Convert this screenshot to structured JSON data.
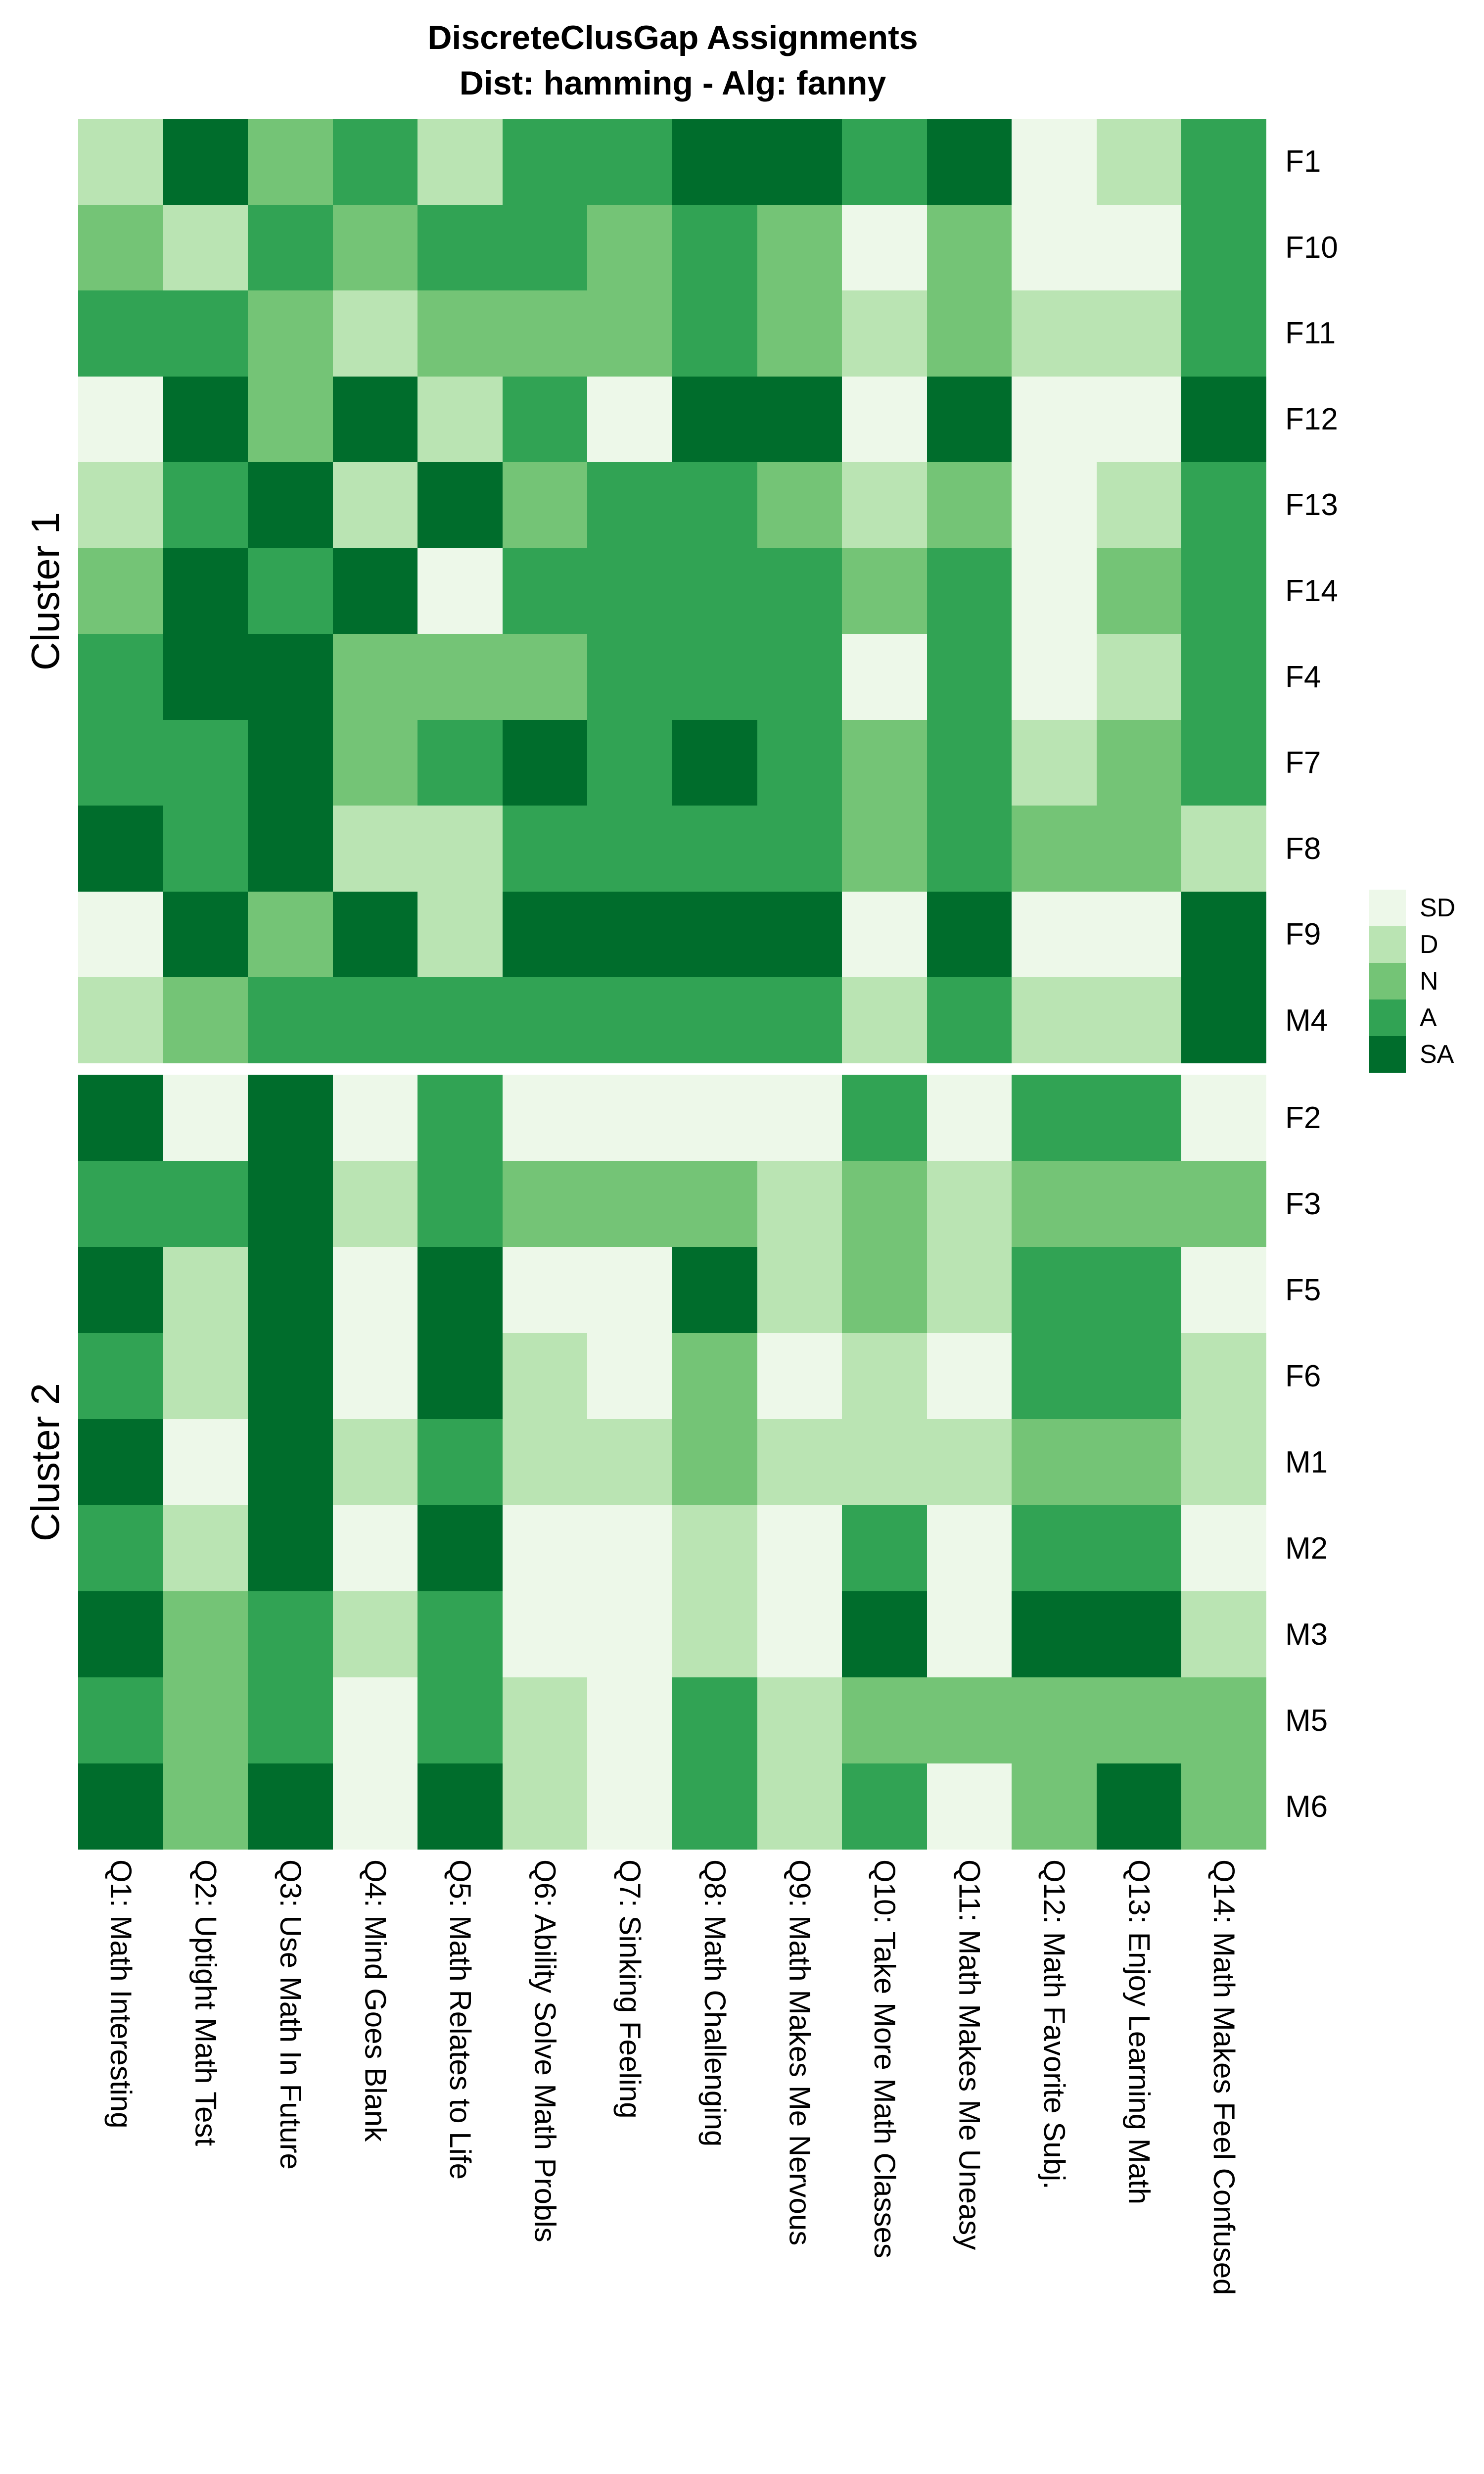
{
  "title": {
    "line1": "DiscreteClusGap Assignments",
    "line2": "Dist: hamming - Alg: fanny"
  },
  "legend": {
    "position": "right",
    "entries": [
      {
        "label": "SD",
        "color": "#EDF8E9"
      },
      {
        "label": "D",
        "color": "#BAE4B3"
      },
      {
        "label": "N",
        "color": "#74C476"
      },
      {
        "label": "A",
        "color": "#31A354"
      },
      {
        "label": "SA",
        "color": "#006D2C"
      }
    ]
  },
  "chart_data": {
    "type": "heatmap",
    "title": "DiscreteClusGap Assignments",
    "subtitle": "Dist: hamming - Alg: fanny",
    "value_levels": [
      "SD",
      "D",
      "N",
      "A",
      "SA"
    ],
    "scale": {
      "SD": "#EDF8E9",
      "D": "#BAE4B3",
      "N": "#74C476",
      "A": "#31A354",
      "SA": "#006D2C"
    },
    "columns": [
      "Q1: Math Interesting",
      "Q2: Uptight Math Test",
      "Q3: Use Math In Future",
      "Q4: Mind Goes Blank",
      "Q5: Math Relates to Life",
      "Q6: Ability Solve Math Probls",
      "Q7: Sinking Feeling",
      "Q8: Math Challenging",
      "Q9: Math Makes Me Nervous",
      "Q10: Take More Math Classes",
      "Q11: Math Makes Me Uneasy",
      "Q12: Math Favorite Subj.",
      "Q13: Enjoy Learning Math",
      "Q14: Math Makes Feel Confused"
    ],
    "clusters": [
      {
        "label": "Cluster 1",
        "rows": [
          "F1",
          "F10",
          "F11",
          "F12",
          "F13",
          "F14",
          "F4",
          "F7",
          "F8",
          "F9",
          "M4"
        ],
        "matrix": [
          [
            "D",
            "SA",
            "N",
            "A",
            "D",
            "A",
            "A",
            "SA",
            "SA",
            "A",
            "SA",
            "SD",
            "D",
            "A"
          ],
          [
            "N",
            "D",
            "A",
            "N",
            "A",
            "A",
            "N",
            "A",
            "N",
            "SD",
            "N",
            "SD",
            "SD",
            "A"
          ],
          [
            "A",
            "A",
            "N",
            "D",
            "N",
            "N",
            "N",
            "A",
            "N",
            "D",
            "N",
            "D",
            "D",
            "A"
          ],
          [
            "SD",
            "SA",
            "N",
            "SA",
            "D",
            "A",
            "SD",
            "SA",
            "SA",
            "SD",
            "SA",
            "SD",
            "SD",
            "SA"
          ],
          [
            "D",
            "A",
            "SA",
            "D",
            "SA",
            "N",
            "A",
            "A",
            "N",
            "D",
            "N",
            "SD",
            "D",
            "A"
          ],
          [
            "N",
            "SA",
            "A",
            "SA",
            "SD",
            "A",
            "A",
            "A",
            "A",
            "N",
            "A",
            "SD",
            "N",
            "A"
          ],
          [
            "A",
            "SA",
            "SA",
            "N",
            "N",
            "N",
            "A",
            "A",
            "A",
            "SD",
            "A",
            "SD",
            "D",
            "A"
          ],
          [
            "A",
            "A",
            "SA",
            "N",
            "A",
            "SA",
            "A",
            "SA",
            "A",
            "N",
            "A",
            "D",
            "N",
            "A"
          ],
          [
            "SA",
            "A",
            "SA",
            "D",
            "D",
            "A",
            "A",
            "A",
            "A",
            "N",
            "A",
            "N",
            "N",
            "D"
          ],
          [
            "SD",
            "SA",
            "N",
            "SA",
            "D",
            "SA",
            "SA",
            "SA",
            "SA",
            "SD",
            "SA",
            "SD",
            "SD",
            "SA"
          ],
          [
            "D",
            "N",
            "A",
            "A",
            "A",
            "A",
            "A",
            "A",
            "A",
            "D",
            "A",
            "D",
            "D",
            "SA"
          ]
        ]
      },
      {
        "label": "Cluster 2",
        "rows": [
          "F2",
          "F3",
          "F5",
          "F6",
          "M1",
          "M2",
          "M3",
          "M5",
          "M6"
        ],
        "matrix": [
          [
            "SA",
            "SD",
            "SA",
            "SD",
            "A",
            "SD",
            "SD",
            "SD",
            "SD",
            "A",
            "SD",
            "A",
            "A",
            "SD"
          ],
          [
            "A",
            "A",
            "SA",
            "D",
            "A",
            "N",
            "N",
            "N",
            "D",
            "N",
            "D",
            "N",
            "N",
            "N"
          ],
          [
            "SA",
            "D",
            "SA",
            "SD",
            "SA",
            "SD",
            "SD",
            "SA",
            "D",
            "N",
            "D",
            "A",
            "A",
            "SD"
          ],
          [
            "A",
            "D",
            "SA",
            "SD",
            "SA",
            "D",
            "SD",
            "N",
            "SD",
            "D",
            "SD",
            "A",
            "A",
            "D"
          ],
          [
            "SA",
            "SD",
            "SA",
            "D",
            "A",
            "D",
            "D",
            "N",
            "D",
            "D",
            "D",
            "N",
            "N",
            "D"
          ],
          [
            "A",
            "D",
            "SA",
            "SD",
            "SA",
            "SD",
            "SD",
            "D",
            "SD",
            "A",
            "SD",
            "A",
            "A",
            "SD"
          ],
          [
            "SA",
            "N",
            "A",
            "D",
            "A",
            "SD",
            "SD",
            "D",
            "SD",
            "SA",
            "SD",
            "SA",
            "SA",
            "D"
          ],
          [
            "A",
            "N",
            "A",
            "SD",
            "A",
            "D",
            "SD",
            "A",
            "D",
            "N",
            "N",
            "N",
            "N",
            "N"
          ],
          [
            "SA",
            "N",
            "SA",
            "SD",
            "SA",
            "D",
            "SD",
            "A",
            "D",
            "A",
            "SD",
            "N",
            "SA",
            "N"
          ]
        ]
      }
    ],
    "layout_hints": {
      "legend_position": "right",
      "row_labels_side": "right",
      "column_labels_rotated": "vertical-top-to-bottom",
      "cluster_labels_side": "left-rotated"
    }
  }
}
